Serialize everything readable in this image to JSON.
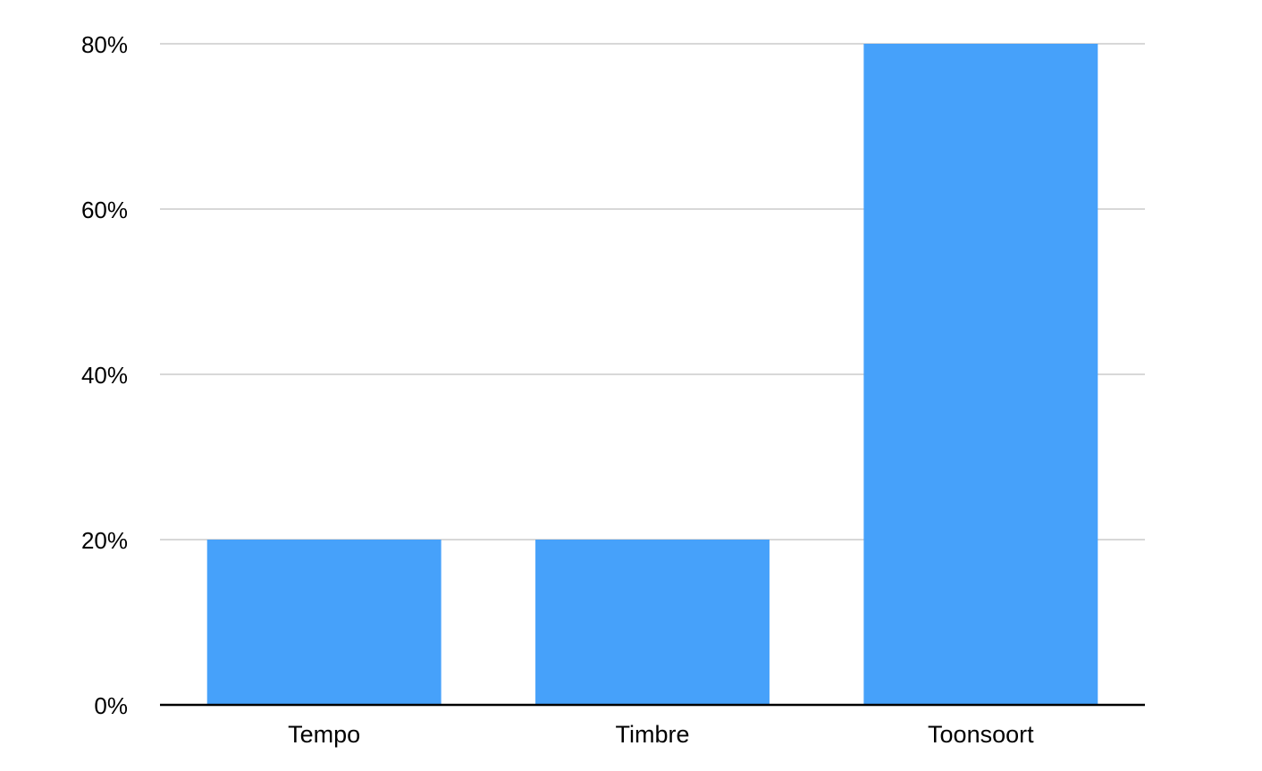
{
  "chart_data": {
    "type": "bar",
    "categories": [
      "Tempo",
      "Timbre",
      "Toonsoort"
    ],
    "values": [
      20,
      20,
      80
    ],
    "value_format": "percent",
    "y_ticks": [
      0,
      20,
      40,
      60,
      80
    ],
    "y_tick_labels": [
      "0%",
      "20%",
      "40%",
      "60%",
      "80%"
    ],
    "ylim": [
      0,
      80
    ],
    "grid": true,
    "legend": "none",
    "colors": {
      "bar": "#46a1fa",
      "grid": "#cccccc",
      "axis": "#000000"
    }
  }
}
